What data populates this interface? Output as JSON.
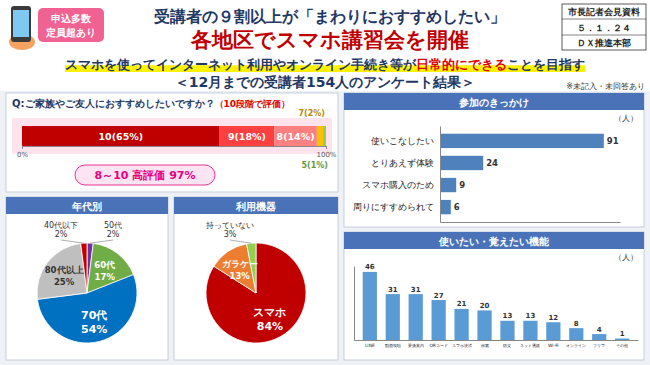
{
  "header": {
    "badge": [
      "申込多数",
      "定員超あり"
    ],
    "title": "受講者の９割以上が「まわりにおすすめしたい」",
    "headline": "各地区でスマホ講習会を開催",
    "info": [
      "市長記者会見資料",
      "５．１．２４",
      "ＤＸ推進本部"
    ],
    "subtitle": [
      "スマホを使ってインターネット利用やオンライン手続き等が",
      "日常的にできる",
      "ことを目指す"
    ],
    "survey": "＜12月までの受講者154人のアンケート結果＞",
    "note": "※未記入・未回答あり"
  },
  "chart_data": [
    {
      "type": "bar",
      "orientation": "horizontal",
      "stacked": true,
      "data_labels": true,
      "tick_labels": "x",
      "title": "Q:ご家族やご友人におすすめしたいですか？",
      "subtitle": "（10段階で評価）",
      "xlim": [
        0,
        100
      ],
      "xticks": [
        {
          "value": 0,
          "label": "0%"
        },
        {
          "value": 100,
          "label": "100%"
        }
      ],
      "series": [
        {
          "color": "#c00000",
          "values": [
            65
          ],
          "value_labels": [
            "10(65%)"
          ]
        },
        {
          "color": "#ff4040",
          "values": [
            18
          ],
          "value_labels": [
            "9(18%)"
          ]
        },
        {
          "color": "#ff8080",
          "values": [
            14
          ],
          "value_labels": [
            "8(14%)"
          ]
        },
        {
          "color": "#ffc000",
          "values": [
            2
          ],
          "value_labels": [
            "7(2%)"
          ]
        },
        {
          "color": "#92d050",
          "values": [
            1
          ],
          "value_labels": [
            "5(1%)"
          ]
        }
      ],
      "annotation": "8～10 高評価 97%"
    },
    {
      "type": "pie",
      "title": "年代別",
      "data_labels": true,
      "categories": [
        "50代",
        "60代",
        "70代",
        "80代以上",
        "40代以下"
      ],
      "values": [
        2,
        17,
        54,
        25,
        2
      ],
      "value_labels": [
        "2%",
        "17%",
        "54%",
        "25%",
        "2%"
      ],
      "colors": [
        "#7030a0",
        "#70ad47",
        "#0070c0",
        "#bfbfbf",
        "#c00000"
      ]
    },
    {
      "type": "pie",
      "title": "利用機器",
      "data_labels": true,
      "categories": [
        "スマホ",
        "ガラケー",
        "持っていない"
      ],
      "values": [
        84,
        13,
        3
      ],
      "value_labels": [
        "84%",
        "13%",
        "3%"
      ],
      "colors": [
        "#c00000",
        "#ed7d31",
        "#92d050"
      ]
    },
    {
      "type": "bar",
      "orientation": "horizontal",
      "title": "参加のきっかけ",
      "xlabel": "（人）",
      "data_labels": true,
      "tick_labels": "y",
      "categories": [
        "使いこなしたい",
        "とりあえず体験",
        "スマホ購入のため",
        "周りにすすめられて"
      ],
      "values": [
        91,
        24,
        9,
        6
      ],
      "color": "#4f81bd",
      "xlim": [
        0,
        100
      ]
    },
    {
      "type": "bar",
      "title": "使いたい・覚えたい機能",
      "ylabel": "（人）",
      "data_labels": true,
      "tick_labels": "x",
      "categories": [
        "LINE",
        "動画視聴",
        "乗換案内",
        "QRコード",
        "スマホ決済",
        "検索",
        "防災",
        "ネット通販",
        "Wi-Fi",
        "オンライン",
        "フリマ",
        "その他"
      ],
      "values": [
        46,
        31,
        31,
        27,
        21,
        20,
        13,
        13,
        12,
        8,
        4,
        1
      ],
      "color": "#5b9bd5",
      "ylim": [
        0,
        50
      ]
    }
  ]
}
